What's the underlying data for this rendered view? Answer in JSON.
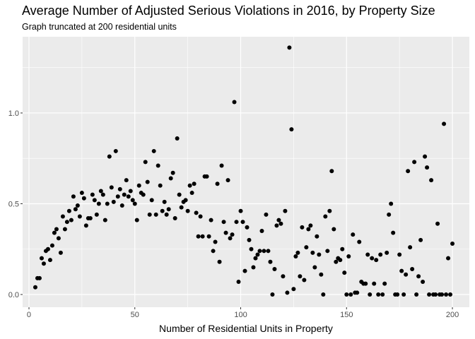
{
  "chart_data": {
    "type": "scatter",
    "title": "Average Number of Adjusted Serious Violations in 2016, by Property Size",
    "subtitle": "Graph truncated at 200 residential units",
    "xlabel": "Number of Residential Units in Property",
    "ylabel": "",
    "xlim": [
      -3,
      208
    ],
    "ylim": [
      -0.07,
      1.42
    ],
    "x_ticks": [
      0,
      50,
      100,
      150,
      200
    ],
    "y_ticks": [
      0.0,
      0.5,
      1.0
    ],
    "x_tick_labels": [
      "0",
      "50",
      "100",
      "150",
      "200"
    ],
    "y_tick_labels": [
      "0.0",
      "0.5",
      "1.0"
    ],
    "grid": true,
    "panel_color": "#ebebeb",
    "point_color": "#000000",
    "points": [
      [
        3,
        0.04
      ],
      [
        4,
        0.09
      ],
      [
        5,
        0.09
      ],
      [
        6,
        0.2
      ],
      [
        7,
        0.17
      ],
      [
        8,
        0.24
      ],
      [
        9,
        0.25
      ],
      [
        10,
        0.19
      ],
      [
        11,
        0.27
      ],
      [
        12,
        0.34
      ],
      [
        13,
        0.36
      ],
      [
        14,
        0.31
      ],
      [
        15,
        0.23
      ],
      [
        16,
        0.43
      ],
      [
        17,
        0.36
      ],
      [
        18,
        0.4
      ],
      [
        19,
        0.46
      ],
      [
        20,
        0.41
      ],
      [
        21,
        0.54
      ],
      [
        22,
        0.47
      ],
      [
        23,
        0.49
      ],
      [
        24,
        0.43
      ],
      [
        25,
        0.56
      ],
      [
        26,
        0.53
      ],
      [
        27,
        0.38
      ],
      [
        28,
        0.42
      ],
      [
        29,
        0.42
      ],
      [
        30,
        0.55
      ],
      [
        31,
        0.52
      ],
      [
        32,
        0.44
      ],
      [
        33,
        0.5
      ],
      [
        34,
        0.57
      ],
      [
        35,
        0.55
      ],
      [
        36,
        0.41
      ],
      [
        37,
        0.5
      ],
      [
        38,
        0.76
      ],
      [
        39,
        0.59
      ],
      [
        40,
        0.51
      ],
      [
        41,
        0.79
      ],
      [
        42,
        0.54
      ],
      [
        43,
        0.58
      ],
      [
        44,
        0.49
      ],
      [
        45,
        0.55
      ],
      [
        46,
        0.63
      ],
      [
        47,
        0.54
      ],
      [
        48,
        0.57
      ],
      [
        49,
        0.52
      ],
      [
        50,
        0.5
      ],
      [
        51,
        0.41
      ],
      [
        52,
        0.6
      ],
      [
        53,
        0.56
      ],
      [
        54,
        0.55
      ],
      [
        55,
        0.73
      ],
      [
        56,
        0.62
      ],
      [
        57,
        0.44
      ],
      [
        58,
        0.52
      ],
      [
        59,
        0.79
      ],
      [
        60,
        0.44
      ],
      [
        61,
        0.71
      ],
      [
        62,
        0.6
      ],
      [
        63,
        0.46
      ],
      [
        64,
        0.51
      ],
      [
        65,
        0.44
      ],
      [
        66,
        0.47
      ],
      [
        67,
        0.64
      ],
      [
        68,
        0.67
      ],
      [
        69,
        0.42
      ],
      [
        70,
        0.86
      ],
      [
        71,
        0.55
      ],
      [
        72,
        0.48
      ],
      [
        73,
        0.51
      ],
      [
        74,
        0.52
      ],
      [
        75,
        0.46
      ],
      [
        76,
        0.6
      ],
      [
        77,
        0.56
      ],
      [
        78,
        0.61
      ],
      [
        79,
        0.45
      ],
      [
        80,
        0.32
      ],
      [
        81,
        0.43
      ],
      [
        82,
        0.32
      ],
      [
        83,
        0.65
      ],
      [
        84,
        0.65
      ],
      [
        85,
        0.32
      ],
      [
        86,
        0.41
      ],
      [
        87,
        0.24
      ],
      [
        88,
        0.29
      ],
      [
        89,
        0.61
      ],
      [
        90,
        0.18
      ],
      [
        91,
        0.71
      ],
      [
        92,
        0.4
      ],
      [
        93,
        0.34
      ],
      [
        94,
        0.63
      ],
      [
        95,
        0.31
      ],
      [
        96,
        0.33
      ],
      [
        97,
        1.06
      ],
      [
        98,
        0.4
      ],
      [
        99,
        0.07
      ],
      [
        100,
        0.46
      ],
      [
        101,
        0.4
      ],
      [
        102,
        0.13
      ],
      [
        103,
        0.37
      ],
      [
        104,
        0.3
      ],
      [
        105,
        0.25
      ],
      [
        106,
        0.15
      ],
      [
        107,
        0.2
      ],
      [
        108,
        0.22
      ],
      [
        109,
        0.24
      ],
      [
        110,
        0.35
      ],
      [
        111,
        0.24
      ],
      [
        112,
        0.44
      ],
      [
        113,
        0.24
      ],
      [
        114,
        0.18
      ],
      [
        115,
        0.0
      ],
      [
        116,
        0.14
      ],
      [
        117,
        0.38
      ],
      [
        118,
        0.41
      ],
      [
        119,
        0.39
      ],
      [
        120,
        0.1
      ],
      [
        121,
        0.46
      ],
      [
        122,
        0.01
      ],
      [
        123,
        1.36
      ],
      [
        124,
        0.91
      ],
      [
        125,
        0.03
      ],
      [
        126,
        0.21
      ],
      [
        127,
        0.23
      ],
      [
        128,
        0.1
      ],
      [
        129,
        0.37
      ],
      [
        130,
        0.08
      ],
      [
        131,
        0.26
      ],
      [
        132,
        0.36
      ],
      [
        133,
        0.38
      ],
      [
        134,
        0.23
      ],
      [
        135,
        0.15
      ],
      [
        136,
        0.32
      ],
      [
        137,
        0.22
      ],
      [
        138,
        0.11
      ],
      [
        139,
        0.0
      ],
      [
        140,
        0.43
      ],
      [
        141,
        0.24
      ],
      [
        142,
        0.46
      ],
      [
        143,
        0.68
      ],
      [
        144,
        0.36
      ],
      [
        145,
        0.18
      ],
      [
        146,
        0.2
      ],
      [
        147,
        0.19
      ],
      [
        148,
        0.25
      ],
      [
        149,
        0.12
      ],
      [
        150,
        0.0
      ],
      [
        151,
        0.21
      ],
      [
        152,
        0.0
      ],
      [
        153,
        0.33
      ],
      [
        154,
        0.01
      ],
      [
        155,
        0.01
      ],
      [
        156,
        0.29
      ],
      [
        157,
        0.07
      ],
      [
        158,
        0.06
      ],
      [
        159,
        0.06
      ],
      [
        160,
        0.22
      ],
      [
        161,
        0.0
      ],
      [
        162,
        0.2
      ],
      [
        163,
        0.06
      ],
      [
        164,
        0.19
      ],
      [
        165,
        0.0
      ],
      [
        166,
        0.22
      ],
      [
        167,
        0.0
      ],
      [
        168,
        0.06
      ],
      [
        169,
        0.23
      ],
      [
        170,
        0.44
      ],
      [
        171,
        0.5
      ],
      [
        172,
        0.34
      ],
      [
        173,
        0.0
      ],
      [
        174,
        0.0
      ],
      [
        175,
        0.22
      ],
      [
        176,
        0.13
      ],
      [
        177,
        0.0
      ],
      [
        178,
        0.11
      ],
      [
        179,
        0.68
      ],
      [
        180,
        0.26
      ],
      [
        181,
        0.14
      ],
      [
        182,
        0.73
      ],
      [
        183,
        0.0
      ],
      [
        184,
        0.1
      ],
      [
        185,
        0.3
      ],
      [
        186,
        0.07
      ],
      [
        187,
        0.76
      ],
      [
        188,
        0.7
      ],
      [
        189,
        0.0
      ],
      [
        190,
        0.63
      ],
      [
        191,
        0.0
      ],
      [
        192,
        0.0
      ],
      [
        193,
        0.39
      ],
      [
        194,
        0.0
      ],
      [
        195,
        0.0
      ],
      [
        196,
        0.94
      ],
      [
        197,
        0.0
      ],
      [
        198,
        0.2
      ],
      [
        199,
        0.0
      ],
      [
        200,
        0.28
      ]
    ]
  }
}
